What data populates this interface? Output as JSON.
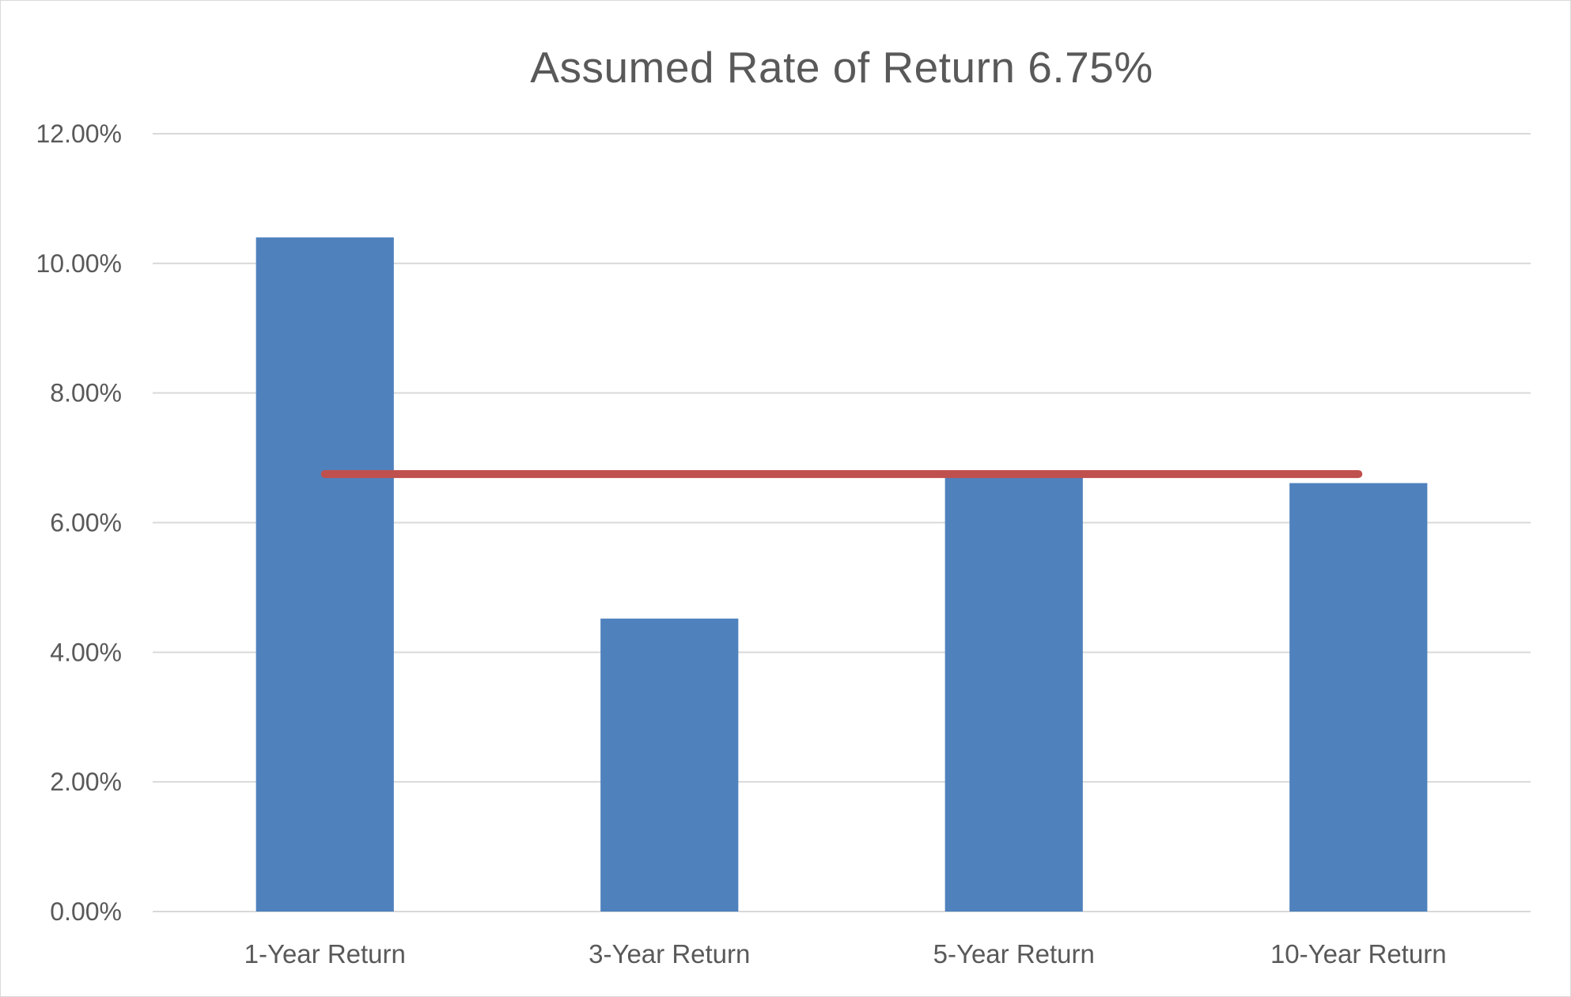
{
  "chart_data": {
    "type": "bar",
    "title": "Assumed Rate of Return 6.75%",
    "categories": [
      "1-Year Return",
      "3-Year Return",
      "5-Year Return",
      "10-Year Return"
    ],
    "series": [
      {
        "type": "bar",
        "values": [
          10.4,
          4.52,
          6.76,
          6.61
        ],
        "color": "#4f81bd"
      },
      {
        "type": "line",
        "values": [
          6.75,
          6.75,
          6.75,
          6.75
        ],
        "color": "#c0504d"
      }
    ],
    "y_ticks": [
      "0.00%",
      "2.00%",
      "4.00%",
      "6.00%",
      "8.00%",
      "10.00%",
      "12.00%"
    ],
    "ylim": [
      0,
      12
    ],
    "xlabel": "",
    "ylabel": "",
    "grid": true,
    "legend": "none"
  }
}
